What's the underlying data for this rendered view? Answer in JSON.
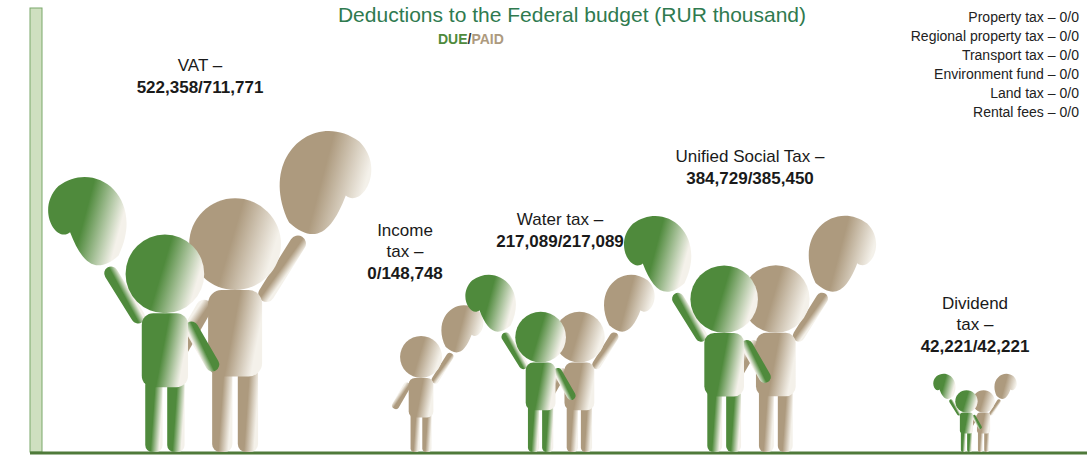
{
  "chart_data": {
    "type": "pictogram",
    "title": "Deductions to the Federal budget (RUR thousand)",
    "separator": "/",
    "categories": [
      "VAT –",
      "Income tax –",
      "Water tax –",
      "Unified Social Tax –",
      "Dividend tax –"
    ],
    "series": [
      {
        "name": "DUE",
        "color": "#4f8a3c",
        "values": [
          522358,
          0,
          217089,
          384729,
          42221
        ],
        "value_labels": [
          "522,358",
          "0",
          "217,089",
          "384,729",
          "42,221"
        ]
      },
      {
        "name": "PAID",
        "color": "#ad9a7e",
        "values": [
          711771,
          148748,
          217089,
          385450,
          42221
        ],
        "value_labels": [
          "711,771",
          "148,748",
          "217,089",
          "385,450",
          "42,221"
        ]
      }
    ],
    "data_labels": true,
    "other_items": [
      {
        "label": "Property tax –",
        "due": 0,
        "paid": 0
      },
      {
        "label": "Regional property tax –",
        "due": 0,
        "paid": 0
      },
      {
        "label": "Transport tax –",
        "due": 0,
        "paid": 0
      },
      {
        "label": "Environment fund –",
        "due": 0,
        "paid": 0
      },
      {
        "label": "Land tax –",
        "due": 0,
        "paid": 0
      },
      {
        "label": "Rental fees –",
        "due": 0,
        "paid": 0
      }
    ]
  }
}
